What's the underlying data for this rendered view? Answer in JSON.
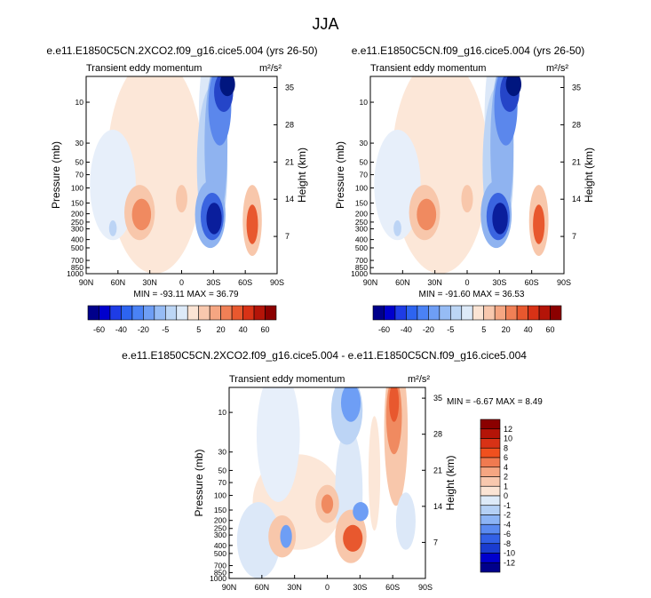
{
  "page": {
    "title": "JJA"
  },
  "chart_data": [
    {
      "type": "heatmap",
      "title": "e.e11.E1850C5CN.2XCO2.f09_g16.cice5.004 (yrs 26-50)",
      "left_label": "Transient eddy momentum",
      "units_label": "m²/s²",
      "xlabel": "",
      "ylabel": "Pressure (mb)",
      "ylabel_right": "Height (km)",
      "x_ticks": [
        "90N",
        "60N",
        "30N",
        "0",
        "30S",
        "60S",
        "90S"
      ],
      "y_ticks": [
        "10",
        "30",
        "50",
        "70",
        "100",
        "150",
        "200",
        "250",
        "300",
        "400",
        "500",
        "700",
        "850",
        "1000"
      ],
      "y_right_ticks": [
        "35",
        "28",
        "21",
        "14",
        "7"
      ],
      "min_max": "MIN = -93.11   MAX = 36.79",
      "field_min": -93.11,
      "field_max": 36.79
    },
    {
      "type": "heatmap",
      "title": "e.e11.E1850C5CN.f09_g16.cice5.004 (yrs 26-50)",
      "left_label": "Transient eddy momentum",
      "units_label": "m²/s²",
      "xlabel": "",
      "ylabel": "Pressure (mb)",
      "ylabel_right": "Height (km)",
      "x_ticks": [
        "90N",
        "60N",
        "30N",
        "0",
        "30S",
        "60S",
        "90S"
      ],
      "y_ticks": [
        "10",
        "30",
        "50",
        "70",
        "100",
        "150",
        "200",
        "250",
        "300",
        "400",
        "500",
        "700",
        "850",
        "1000"
      ],
      "y_right_ticks": [
        "35",
        "28",
        "21",
        "14",
        "7"
      ],
      "min_max": "MIN = -91.60   MAX = 36.53",
      "field_min": -91.6,
      "field_max": 36.53
    },
    {
      "type": "heatmap",
      "title": "e.e11.E1850C5CN.2XCO2.f09_g16.cice5.004 - e.e11.E1850C5CN.f09_g16.cice5.004",
      "left_label": "Transient eddy momentum",
      "units_label": "m²/s²",
      "xlabel": "",
      "ylabel": "Pressure (mb)",
      "ylabel_right": "Height (km)",
      "x_ticks": [
        "90N",
        "60N",
        "30N",
        "0",
        "30S",
        "60S",
        "90S"
      ],
      "y_ticks": [
        "10",
        "30",
        "50",
        "70",
        "100",
        "150",
        "200",
        "250",
        "300",
        "400",
        "500",
        "700",
        "850",
        "1000"
      ],
      "y_right_ticks": [
        "35",
        "28",
        "21",
        "14",
        "7"
      ],
      "min_max": "MIN = -6.67   MAX =  8.49",
      "field_min": -6.67,
      "field_max": 8.49
    }
  ],
  "colorbar_top": {
    "labels": [
      "-60",
      "-40",
      "-20",
      "-5",
      "5",
      "20",
      "40",
      "60"
    ],
    "colors": [
      "#00008b",
      "#0000cd",
      "#1e3ce6",
      "#2d64f0",
      "#4a82f5",
      "#6e9ef5",
      "#96bcf5",
      "#bcd6f5",
      "#ddeaf8",
      "#fbe4d4",
      "#f8c8ae",
      "#f5a682",
      "#f08056",
      "#e8582e",
      "#d83216",
      "#b41408",
      "#8b0000"
    ]
  },
  "colorbar_diff": {
    "labels": [
      "12",
      "10",
      "8",
      "6",
      "4",
      "2",
      "1",
      "0",
      "-1",
      "-2",
      "-4",
      "-6",
      "-8",
      "-10",
      "-12"
    ],
    "colors": [
      "#8b0000",
      "#b41408",
      "#d83216",
      "#f0501e",
      "#f07a50",
      "#f5a682",
      "#f8c8ae",
      "#fbe4d4",
      "#ddeaf8",
      "#b4d0f5",
      "#8cb4f5",
      "#5a8af0",
      "#3260e6",
      "#1a3cd0",
      "#0000cd",
      "#00008b"
    ]
  }
}
